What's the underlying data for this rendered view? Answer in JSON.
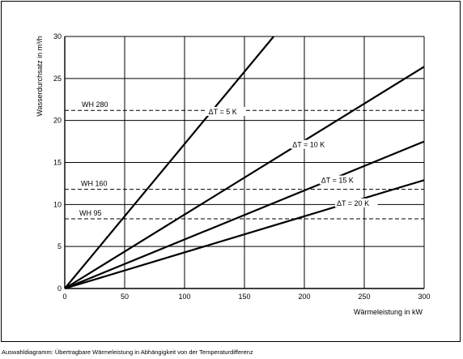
{
  "chart_data": {
    "type": "line",
    "title": "",
    "xlabel": "Wärmeleistung in kW",
    "ylabel": "Wasserdurchsatz in m³/h",
    "xlim": [
      0,
      300
    ],
    "ylim": [
      0,
      30
    ],
    "xticks": [
      0,
      50,
      100,
      150,
      200,
      250,
      300
    ],
    "yticks": [
      0,
      5,
      10,
      15,
      20,
      25,
      30
    ],
    "grid": true,
    "series": [
      {
        "name": "ΔT = 5 K",
        "x": [
          0,
          174.4
        ],
        "y": [
          0,
          30
        ]
      },
      {
        "name": "ΔT = 10 K",
        "x": [
          0,
          300
        ],
        "y": [
          0,
          26.4
        ]
      },
      {
        "name": "ΔT = 15 K",
        "x": [
          0,
          300
        ],
        "y": [
          0,
          17.5
        ]
      },
      {
        "name": "ΔT = 20 K",
        "x": [
          0,
          300
        ],
        "y": [
          0,
          12.9
        ]
      }
    ],
    "reference_lines": [
      {
        "name": "WH 280",
        "y": 21.2
      },
      {
        "name": "WH 160",
        "y": 11.8
      },
      {
        "name": "WH 95",
        "y": 8.3
      }
    ]
  },
  "caption": "Auswahldiagramm: Übertragbare Wärmeleistung in Abhängigkeit von der Temperaturdifferenz"
}
